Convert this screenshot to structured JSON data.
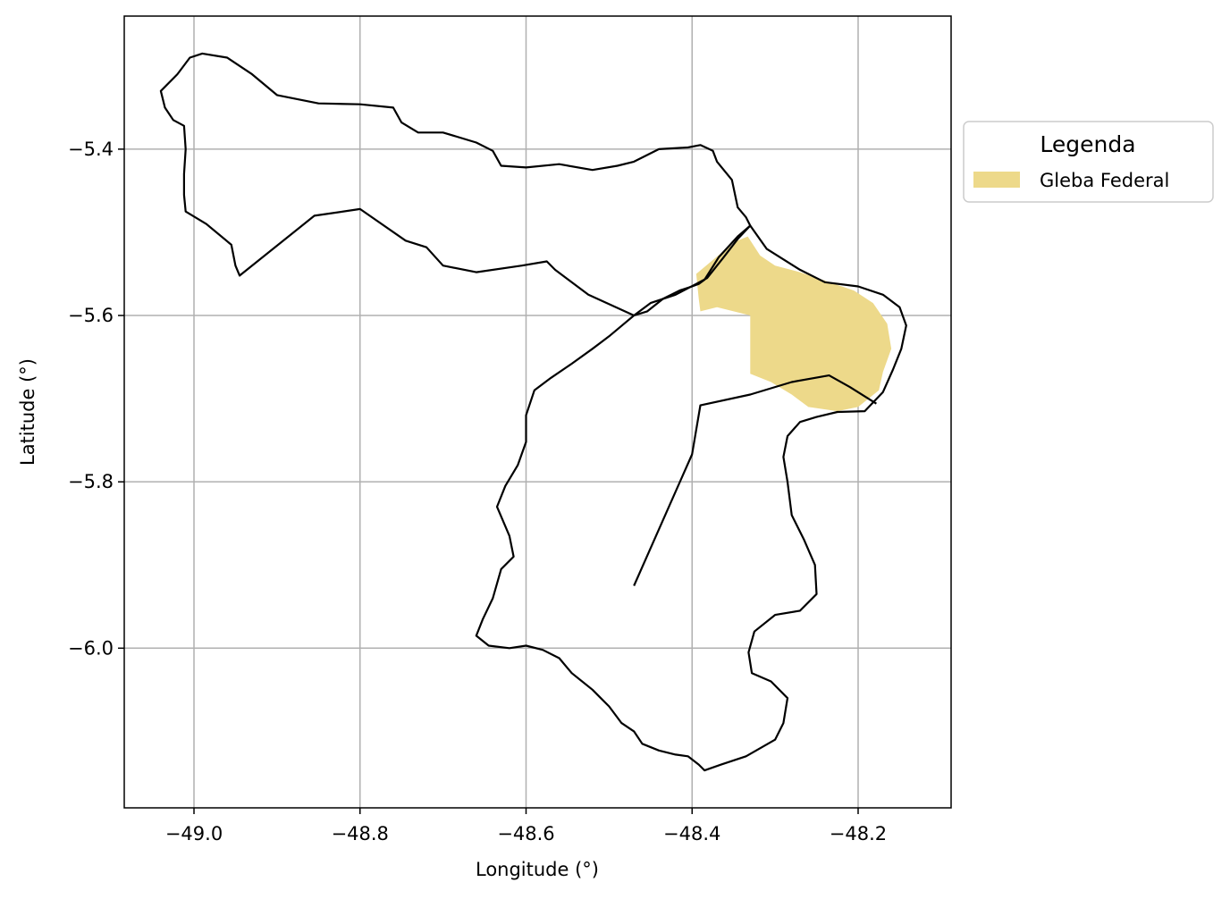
{
  "chart_data": {
    "type": "map",
    "xlabel": "Longitude (°)",
    "ylabel": "Latitude (°)",
    "xlim": [
      -49.084,
      -48.088
    ],
    "ylim": [
      -6.192,
      -5.24
    ],
    "x_ticks": [
      -49.0,
      -48.8,
      -48.6,
      -48.4,
      -48.2
    ],
    "x_tick_labels": [
      "−49.0",
      "−48.8",
      "−48.6",
      "−48.4",
      "−48.2"
    ],
    "y_ticks": [
      -5.4,
      -5.6,
      -5.8,
      -6.0
    ],
    "y_tick_labels": [
      "−5.4",
      "−5.6",
      "−5.8",
      "−6.0"
    ],
    "grid": true,
    "legend": {
      "title": "Legenda",
      "placement": "outside-right-top",
      "entries": [
        {
          "label": "Gleba Federal",
          "color": "#edd98a"
        }
      ]
    },
    "colors": {
      "boundary": "#000000",
      "gleba_fill": "#edd98a",
      "grid": "#b0b0b0"
    },
    "boundaries": [
      {
        "name": "",
        "coords": [
          [
            -49.04,
            -5.33
          ],
          [
            -49.02,
            -5.31
          ],
          [
            -49.005,
            -5.29
          ],
          [
            -48.99,
            -5.285
          ],
          [
            -48.96,
            -5.29
          ],
          [
            -48.93,
            -5.31
          ],
          [
            -48.9,
            -5.335
          ],
          [
            -48.85,
            -5.345
          ],
          [
            -48.8,
            -5.346
          ],
          [
            -48.76,
            -5.35
          ],
          [
            -48.75,
            -5.368
          ],
          [
            -48.73,
            -5.38
          ],
          [
            -48.7,
            -5.38
          ],
          [
            -48.66,
            -5.392
          ],
          [
            -48.64,
            -5.402
          ],
          [
            -48.63,
            -5.42
          ],
          [
            -48.6,
            -5.422
          ],
          [
            -48.56,
            -5.418
          ],
          [
            -48.52,
            -5.425
          ],
          [
            -48.49,
            -5.42
          ],
          [
            -48.47,
            -5.415
          ],
          [
            -48.44,
            -5.4
          ],
          [
            -48.405,
            -5.398
          ],
          [
            -48.39,
            -5.395
          ],
          [
            -48.375,
            -5.402
          ],
          [
            -48.37,
            -5.415
          ],
          [
            -48.352,
            -5.437
          ],
          [
            -48.345,
            -5.47
          ],
          [
            -48.335,
            -5.482
          ],
          [
            -48.33,
            -5.492
          ],
          [
            -48.345,
            -5.505
          ],
          [
            -48.368,
            -5.53
          ],
          [
            -48.385,
            -5.557
          ],
          [
            -48.392,
            -5.562
          ],
          [
            -48.4,
            -5.565
          ],
          [
            -48.415,
            -5.57
          ],
          [
            -48.435,
            -5.58
          ],
          [
            -48.454,
            -5.595
          ],
          [
            -48.47,
            -5.6
          ],
          [
            -48.525,
            -5.575
          ],
          [
            -48.565,
            -5.545
          ],
          [
            -48.575,
            -5.535
          ],
          [
            -48.605,
            -5.54
          ],
          [
            -48.66,
            -5.548
          ],
          [
            -48.7,
            -5.54
          ],
          [
            -48.72,
            -5.518
          ],
          [
            -48.745,
            -5.51
          ],
          [
            -48.8,
            -5.472
          ],
          [
            -48.855,
            -5.48
          ],
          [
            -48.945,
            -5.552
          ],
          [
            -48.95,
            -5.54
          ],
          [
            -48.955,
            -5.515
          ],
          [
            -48.985,
            -5.49
          ],
          [
            -49.01,
            -5.475
          ],
          [
            -49.012,
            -5.455
          ],
          [
            -49.012,
            -5.43
          ],
          [
            -49.01,
            -5.4
          ],
          [
            -49.012,
            -5.372
          ],
          [
            -49.025,
            -5.365
          ],
          [
            -49.035,
            -5.35
          ],
          [
            -49.04,
            -5.33
          ]
        ]
      },
      {
        "name": "",
        "coords": [
          [
            -48.47,
            -5.6
          ],
          [
            -48.45,
            -5.585
          ],
          [
            -48.42,
            -5.575
          ],
          [
            -48.395,
            -5.562
          ],
          [
            -48.382,
            -5.555
          ],
          [
            -48.362,
            -5.53
          ],
          [
            -48.345,
            -5.508
          ],
          [
            -48.33,
            -5.492
          ],
          [
            -48.31,
            -5.52
          ],
          [
            -48.27,
            -5.545
          ],
          [
            -48.24,
            -5.56
          ],
          [
            -48.2,
            -5.565
          ],
          [
            -48.17,
            -5.575
          ],
          [
            -48.15,
            -5.59
          ],
          [
            -48.142,
            -5.612
          ],
          [
            -48.148,
            -5.64
          ],
          [
            -48.158,
            -5.665
          ],
          [
            -48.17,
            -5.692
          ],
          [
            -48.192,
            -5.715
          ],
          [
            -48.225,
            -5.716
          ],
          [
            -48.25,
            -5.722
          ],
          [
            -48.27,
            -5.728
          ],
          [
            -48.285,
            -5.745
          ],
          [
            -48.29,
            -5.77
          ],
          [
            -48.285,
            -5.8
          ],
          [
            -48.28,
            -5.84
          ],
          [
            -48.265,
            -5.87
          ],
          [
            -48.252,
            -5.9
          ],
          [
            -48.25,
            -5.935
          ],
          [
            -48.27,
            -5.955
          ],
          [
            -48.3,
            -5.96
          ],
          [
            -48.325,
            -5.98
          ],
          [
            -48.332,
            -6.005
          ],
          [
            -48.328,
            -6.03
          ],
          [
            -48.305,
            -6.04
          ],
          [
            -48.285,
            -6.06
          ],
          [
            -48.29,
            -6.09
          ],
          [
            -48.3,
            -6.11
          ],
          [
            -48.335,
            -6.13
          ],
          [
            -48.365,
            -6.14
          ],
          [
            -48.385,
            -6.147
          ],
          [
            -48.392,
            -6.14
          ],
          [
            -48.405,
            -6.13
          ],
          [
            -48.42,
            -6.128
          ],
          [
            -48.44,
            -6.123
          ],
          [
            -48.46,
            -6.115
          ],
          [
            -48.47,
            -6.1
          ],
          [
            -48.485,
            -6.09
          ],
          [
            -48.5,
            -6.07
          ],
          [
            -48.51,
            -6.06
          ],
          [
            -48.52,
            -6.05
          ],
          [
            -48.545,
            -6.03
          ],
          [
            -48.56,
            -6.012
          ],
          [
            -48.58,
            -6.002
          ],
          [
            -48.6,
            -5.997
          ],
          [
            -48.62,
            -6.0
          ],
          [
            -48.645,
            -5.997
          ],
          [
            -48.66,
            -5.985
          ],
          [
            -48.652,
            -5.965
          ],
          [
            -48.64,
            -5.94
          ],
          [
            -48.63,
            -5.905
          ],
          [
            -48.615,
            -5.89
          ],
          [
            -48.62,
            -5.865
          ],
          [
            -48.635,
            -5.83
          ],
          [
            -48.625,
            -5.805
          ],
          [
            -48.61,
            -5.78
          ],
          [
            -48.6,
            -5.752
          ],
          [
            -48.6,
            -5.72
          ],
          [
            -48.59,
            -5.69
          ],
          [
            -48.57,
            -5.675
          ],
          [
            -48.545,
            -5.658
          ],
          [
            -48.52,
            -5.64
          ],
          [
            -48.5,
            -5.625
          ],
          [
            -48.482,
            -5.61
          ],
          [
            -48.47,
            -5.6
          ]
        ]
      },
      {
        "name": "",
        "coords": [
          [
            -48.47,
            -5.925
          ],
          [
            -48.4,
            -5.767
          ],
          [
            -48.39,
            -5.708
          ],
          [
            -48.33,
            -5.695
          ],
          [
            -48.28,
            -5.68
          ],
          [
            -48.235,
            -5.672
          ],
          [
            -48.21,
            -5.686
          ],
          [
            -48.178,
            -5.706
          ]
        ],
        "open": true
      }
    ],
    "filled_regions": [
      {
        "name": "Gleba Federal",
        "coords": [
          [
            -48.333,
            -5.505
          ],
          [
            -48.318,
            -5.528
          ],
          [
            -48.3,
            -5.54
          ],
          [
            -48.27,
            -5.548
          ],
          [
            -48.24,
            -5.558
          ],
          [
            -48.205,
            -5.57
          ],
          [
            -48.182,
            -5.585
          ],
          [
            -48.165,
            -5.61
          ],
          [
            -48.16,
            -5.64
          ],
          [
            -48.17,
            -5.668
          ],
          [
            -48.175,
            -5.69
          ],
          [
            -48.2,
            -5.71
          ],
          [
            -48.225,
            -5.715
          ],
          [
            -48.26,
            -5.71
          ],
          [
            -48.28,
            -5.695
          ],
          [
            -48.305,
            -5.68
          ],
          [
            -48.33,
            -5.67
          ],
          [
            -48.33,
            -5.6
          ],
          [
            -48.37,
            -5.59
          ],
          [
            -48.39,
            -5.595
          ],
          [
            -48.392,
            -5.58
          ],
          [
            -48.395,
            -5.55
          ],
          [
            -48.365,
            -5.525
          ],
          [
            -48.345,
            -5.51
          ]
        ]
      }
    ]
  }
}
